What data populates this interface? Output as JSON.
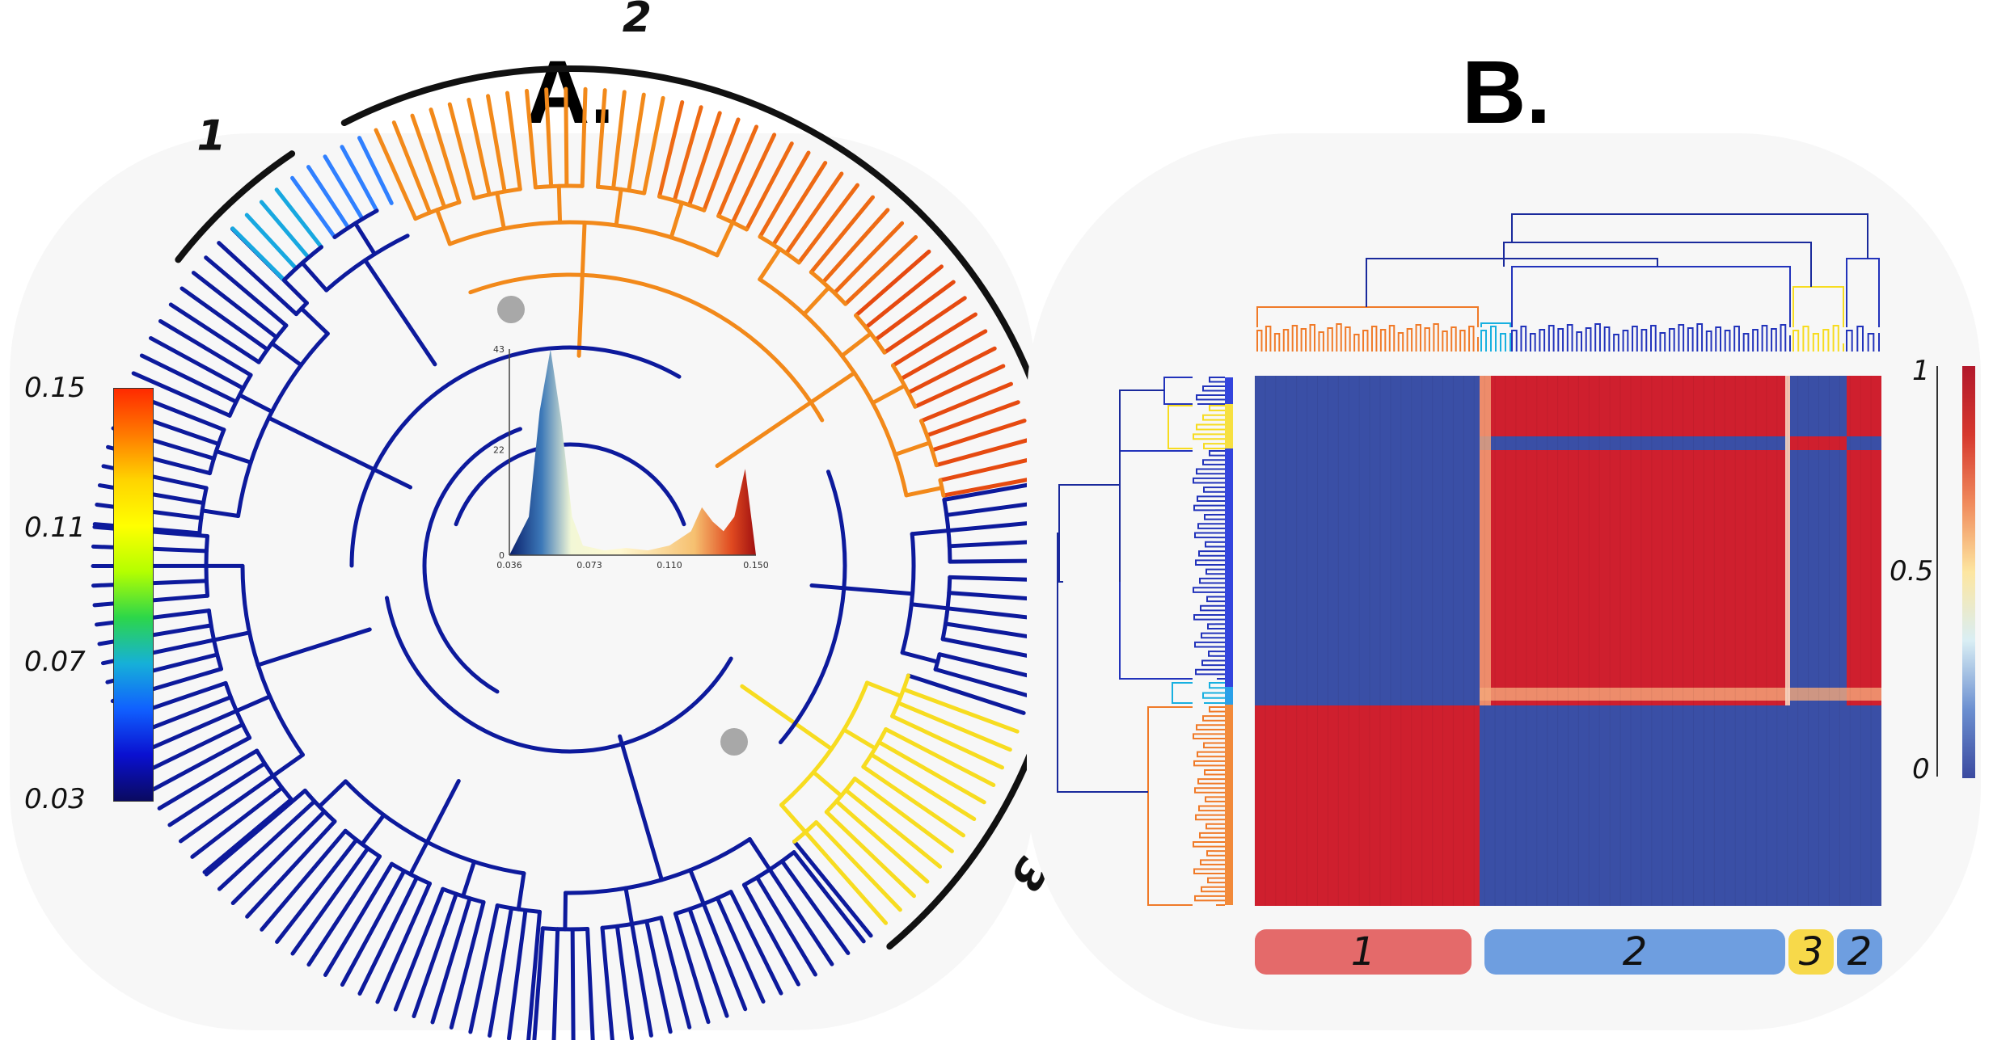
{
  "panel_a": {
    "label": "A.",
    "arc_labels": {
      "c1": "1",
      "c2": "2",
      "c3": "3"
    },
    "colorbar": {
      "ticks": [
        "0.15",
        "0.11",
        "0.07",
        "0.03"
      ],
      "colors": [
        "#ff2a00",
        "#ff7a00",
        "#ffd400",
        "#ffff00",
        "#b4ff00",
        "#2cd64a",
        "#16b0d8",
        "#1060ff",
        "#0a10d0",
        "#0a0a60"
      ]
    },
    "density_inset": {
      "y_ticks": [
        "43",
        "22",
        "0"
      ],
      "x_ticks": [
        "0.036",
        "0.073",
        "0.110",
        "0.150"
      ],
      "chart_data": {
        "type": "area",
        "x": [
          0.036,
          0.045,
          0.05,
          0.055,
          0.06,
          0.065,
          0.07,
          0.08,
          0.09,
          0.1,
          0.11,
          0.12,
          0.125,
          0.13,
          0.135,
          0.14,
          0.145,
          0.15
        ],
        "y": [
          0,
          8,
          30,
          43,
          28,
          8,
          2,
          1,
          1.5,
          1,
          2,
          5,
          10,
          7,
          5,
          8,
          18,
          0
        ],
        "xlim": [
          0.036,
          0.15
        ],
        "ylim": [
          0,
          43
        ]
      }
    },
    "tree_colors": {
      "low": "#0d1a9c",
      "mid": "#18a8e0",
      "gold": "#f7dc20",
      "warm": "#f2891a",
      "hot": "#e64a10"
    }
  },
  "panel_b": {
    "label": "B.",
    "colorbar": {
      "ticks": [
        "1",
        "0.5",
        "0"
      ],
      "colors": [
        "#b2182b",
        "#d6382e",
        "#f08a5c",
        "#fde6a0",
        "#d9eef4",
        "#6b8fd0",
        "#3b4aa0"
      ]
    },
    "heatmap_colors": {
      "high": "#cf1f2e",
      "low": "#3a4fa6",
      "edge": "#f4a77a"
    },
    "cluster_bar": [
      {
        "label": "1",
        "color": "#e46a6a"
      },
      {
        "label": "2",
        "color": "#6e9ee0"
      },
      {
        "label": "3",
        "color": "#f7d94a"
      },
      {
        "label": "2",
        "color": "#6e9ee0"
      }
    ]
  }
}
